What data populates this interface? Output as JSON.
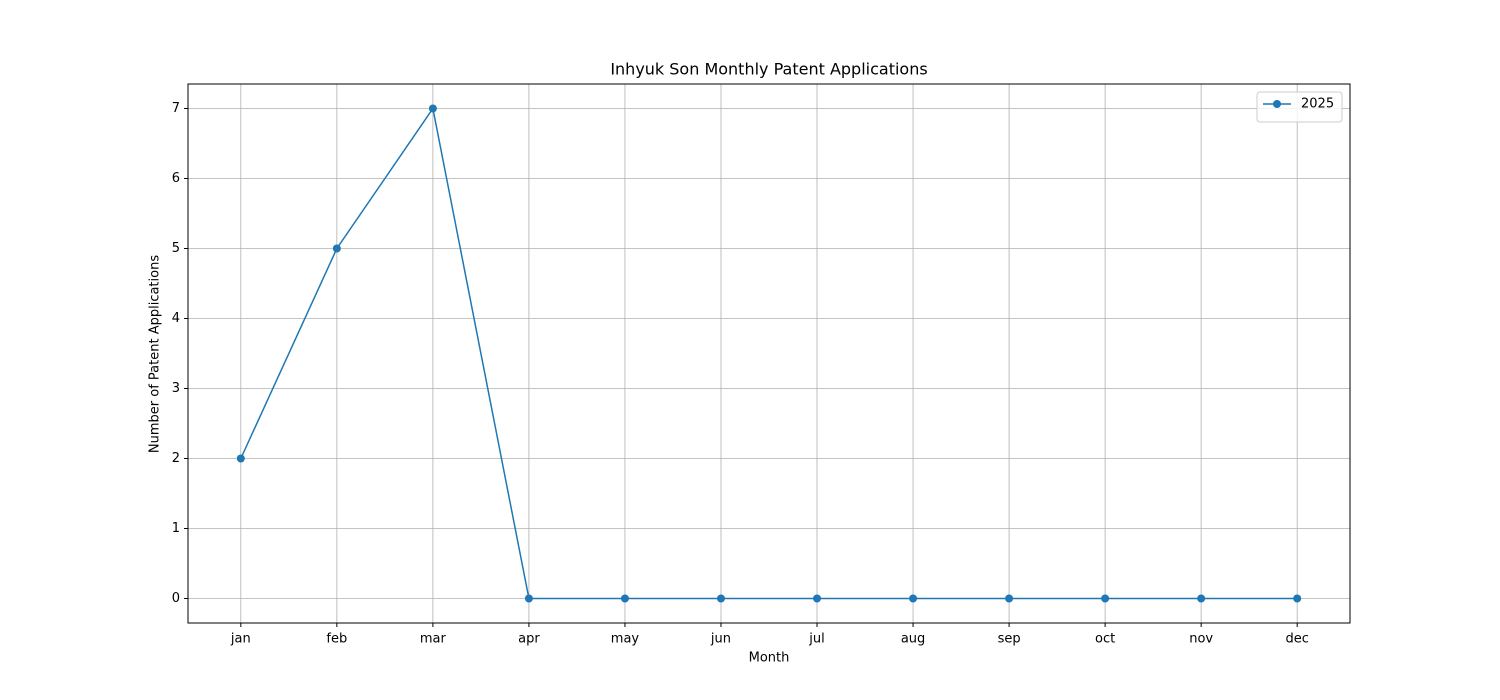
{
  "chart_data": {
    "type": "line",
    "title": "Inhyuk Son Monthly Patent Applications",
    "x_label": "Month",
    "y_label": "Number of Patent Applications",
    "categories": [
      "jan",
      "feb",
      "mar",
      "apr",
      "may",
      "jun",
      "jul",
      "aug",
      "sep",
      "oct",
      "nov",
      "dec"
    ],
    "series": [
      {
        "name": "2025",
        "color": "#1f77b4",
        "values": [
          2,
          5,
          7,
          0,
          0,
          0,
          0,
          0,
          0,
          0,
          0,
          0
        ]
      }
    ],
    "ylim": [
      -0.35,
      7.35
    ],
    "yticks": [
      0,
      1,
      2,
      3,
      4,
      5,
      6,
      7
    ],
    "grid": true,
    "legend": "upper-right"
  }
}
